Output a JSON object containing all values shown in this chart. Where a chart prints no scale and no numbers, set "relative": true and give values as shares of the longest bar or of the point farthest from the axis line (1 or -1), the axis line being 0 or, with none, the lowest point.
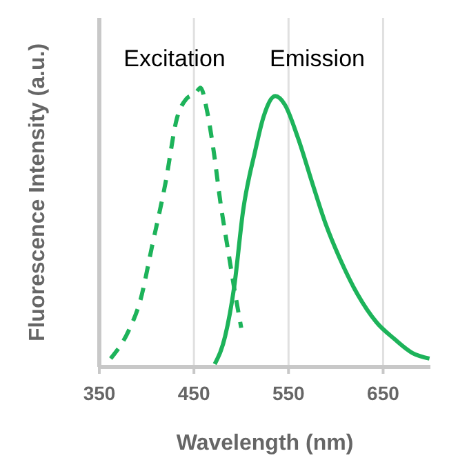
{
  "chart_data": {
    "type": "line",
    "relative": true,
    "xlabel": "Wavelength (nm)",
    "ylabel": "Fluorescence Intensity (a.u.)",
    "xlim": [
      350,
      700
    ],
    "xticks": [
      350,
      450,
      550,
      650
    ],
    "grid": "x",
    "tick_labels": "x",
    "series": [
      {
        "name": "Excitation",
        "color": "#1db35a",
        "line_style": "dashed",
        "x": [
          362,
          381,
          393.5,
          405.6,
          420,
          432,
          442,
          451.6,
          457,
          463.7,
          471,
          478,
          485.5,
          492.7,
          500
        ],
        "values": [
          0.03,
          0.13,
          0.24,
          0.43,
          0.66,
          0.89,
          0.96,
          0.98,
          1,
          0.92,
          0.77,
          0.59,
          0.43,
          0.28,
          0.14
        ]
      },
      {
        "name": "Emission",
        "color": "#1db35a",
        "line_style": "solid",
        "x": [
          472,
          483,
          492.7,
          502,
          514.5,
          524,
          536,
          546,
          560,
          575,
          589.5,
          604,
          623,
          643,
          662,
          681,
          699
        ],
        "values": [
          0.01,
          0.11,
          0.29,
          0.56,
          0.77,
          0.9,
          0.97,
          0.94,
          0.82,
          0.66,
          0.51,
          0.39,
          0.26,
          0.16,
          0.1,
          0.05,
          0.03
        ]
      }
    ]
  }
}
